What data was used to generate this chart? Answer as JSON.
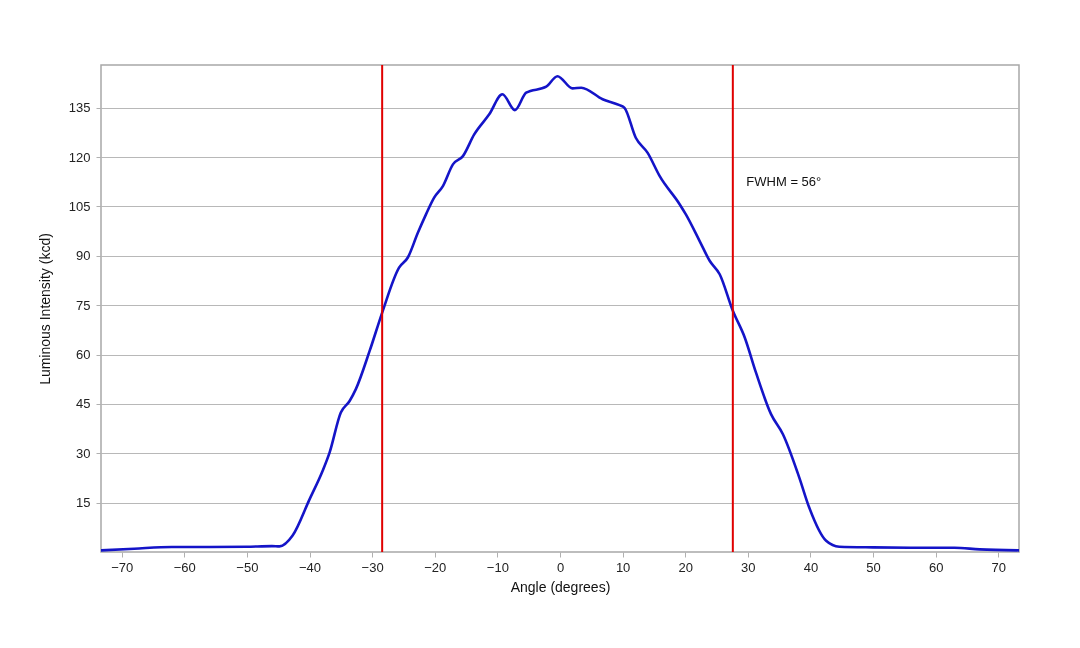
{
  "chart_data": {
    "type": "line",
    "xlabel": "Angle (degrees)",
    "ylabel": "Luminous Intensity (kcd)",
    "xlim": [
      -73.3,
      73.3
    ],
    "xticks": [
      -70,
      -60,
      -50,
      -40,
      -30,
      -20,
      -10,
      0,
      10,
      20,
      30,
      40,
      50,
      60,
      70
    ],
    "ylim": [
      0,
      148
    ],
    "yticks": [
      15,
      30,
      45,
      60,
      75,
      90,
      105,
      120,
      135
    ],
    "grid": "y",
    "marker": "none",
    "line_style": "solid",
    "series": [
      {
        "color": "#1414c8",
        "x": [
          -73.3,
          -68,
          -62,
          -56,
          -50,
          -46,
          -44.8,
          -42.7,
          -40,
          -37.9,
          -36.8,
          -35,
          -33.6,
          -32.6,
          -30.4,
          -28.3,
          -25.7,
          -24.3,
          -22.7,
          -21.4,
          -20.1,
          -18.7,
          -17.1,
          -15.5,
          -13.7,
          -11.3,
          -9.2,
          -7.2,
          -5.4,
          -2.2,
          -0.4,
          2,
          3.4,
          6.8,
          9.5,
          10.3,
          12.1,
          14,
          15.9,
          19.1,
          20.1,
          22.3,
          23.9,
          25.5,
          27.6,
          29.5,
          31.3,
          33.7,
          35.6,
          38.2,
          39.8,
          42.5,
          44.6,
          50,
          56,
          63,
          67,
          73.3
        ],
        "values": [
          0.5,
          1,
          1.5,
          1.5,
          1.6,
          1.8,
          1.7,
          5,
          16,
          24.7,
          30.2,
          42.4,
          45.9,
          49.5,
          61.1,
          73.3,
          86.4,
          89.5,
          97,
          102.6,
          107.7,
          111.2,
          117.8,
          120.3,
          126.9,
          133,
          139.1,
          134.3,
          139.6,
          141.4,
          144.6,
          140.9,
          141.1,
          137.6,
          135.8,
          135,
          125.9,
          121.3,
          114.3,
          105.7,
          102.6,
          94.5,
          88.5,
          84.4,
          73.3,
          65.2,
          54.5,
          41.9,
          35.8,
          22.7,
          13.5,
          3.4,
          1.6,
          1.4,
          1.3,
          1.3,
          0.8,
          0.5
        ]
      }
    ],
    "ref_lines": [
      {
        "axis": "x",
        "value": -28.4,
        "color": "#e00000"
      },
      {
        "axis": "x",
        "value": 27.6,
        "color": "#e00000"
      }
    ],
    "annotations": [
      "FWHM = 56°"
    ]
  }
}
